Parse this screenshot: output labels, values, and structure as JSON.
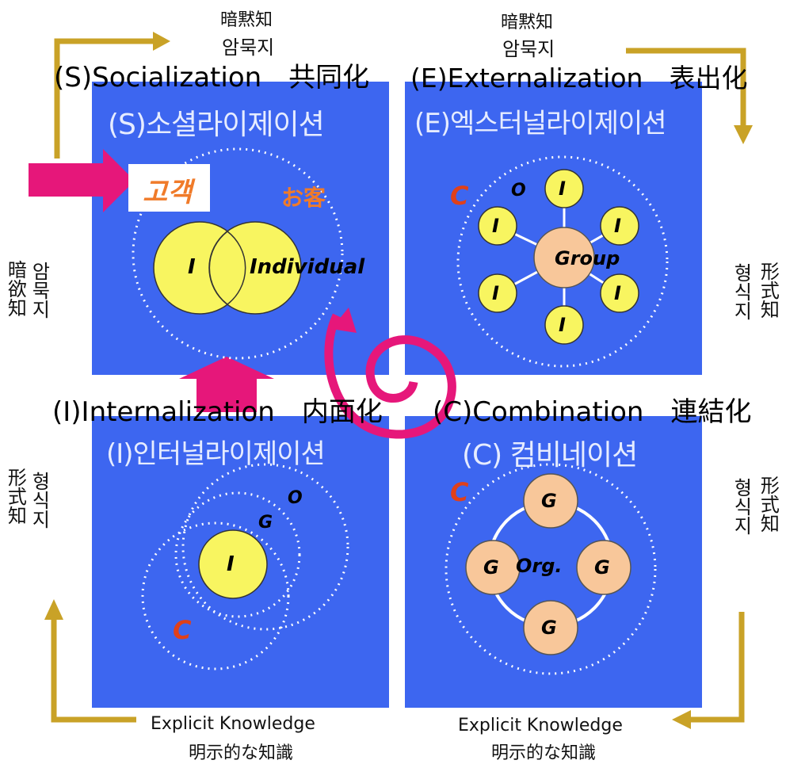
{
  "top_left": {
    "tacit_jp": "暗黙知",
    "tacit_kr": "암묵지"
  },
  "top_right": {
    "tacit_jp": "暗黙知",
    "tacit_kr": "암묵지"
  },
  "left_top": {
    "jp": "暗欲知",
    "kr": "암묵지"
  },
  "left_bottom": {
    "jp": "形式知",
    "kr": "형식지"
  },
  "right_top": {
    "jp": "形式知",
    "kr": "형식지"
  },
  "right_bottom": {
    "jp": "形式知",
    "kr": "형식지"
  },
  "bottom_left": {
    "en": "Explicit Knowledge",
    "jp": "明示的な知識"
  },
  "bottom_right": {
    "en": "Explicit Knowledge",
    "jp": "明示的な知識"
  },
  "quadrants": {
    "socialization": {
      "en_title": "(S)Socialization　共同化",
      "kr_title": "(S)소셜라이제이션",
      "customer_kr": "고객",
      "customer_jp": "お客",
      "circle_i": "I",
      "circle_individual": "Individual"
    },
    "externalization": {
      "en_title": "(E)Externalization　表出化",
      "kr_title": "(E)엑스터널라이제이션",
      "c": "C",
      "o": "O",
      "group": "Group",
      "i": "I"
    },
    "internalization": {
      "en_title": "(I)Internalization　内面化",
      "kr_title": "(I)인터널라이제이션",
      "o": "O",
      "g": "G",
      "i": "I",
      "c": "C"
    },
    "combination": {
      "en_title": "(C)Combination　連結化",
      "kr_title": "(C) 컴비네이션",
      "c": "C",
      "g": "G",
      "org": "Org."
    }
  },
  "colors": {
    "quadrant_blue": "#3d66f0",
    "circle_yellow": "#f8f560",
    "circle_peach": "#f8c79a",
    "spiral_pink": "#e6177a",
    "arrow_gold": "#c9a227",
    "c_red": "#e0401a",
    "customer_orange": "#f07b2a"
  }
}
